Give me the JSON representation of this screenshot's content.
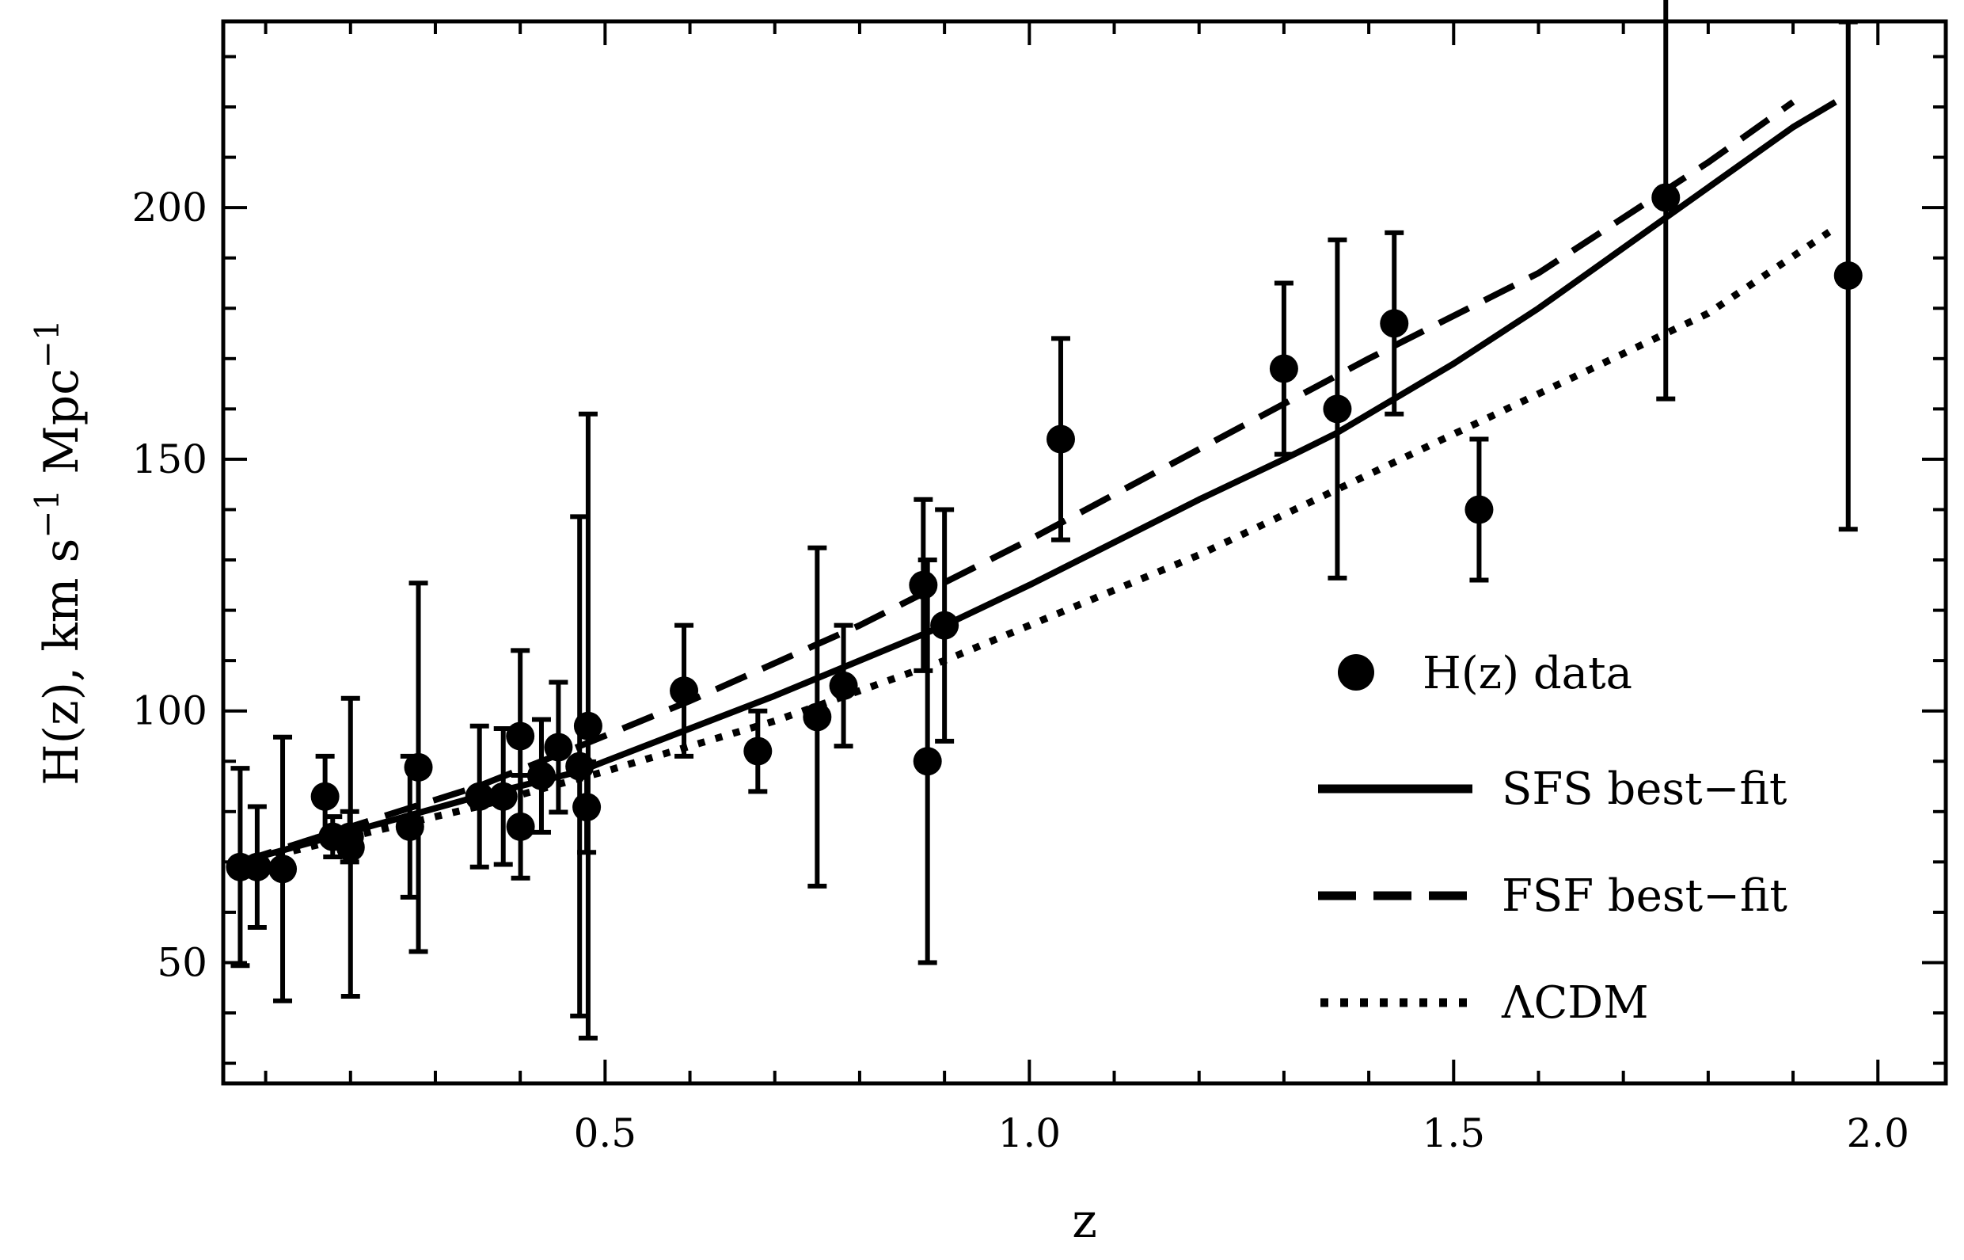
{
  "chart_data": {
    "type": "scatter",
    "title": "",
    "xlabel": "z",
    "ylabel_parts": {
      "main": "H(z), km s",
      "sup1": "−1",
      "mid": " Mpc",
      "sup2": "−1"
    },
    "xlim": [
      0.05,
      2.08
    ],
    "ylim": [
      26,
      237
    ],
    "x_ticks": [
      0.5,
      1.0,
      1.5,
      2.0
    ],
    "x_tick_labels": [
      "0.5",
      "1.0",
      "1.5",
      "2.0"
    ],
    "y_ticks": [
      50,
      100,
      150,
      200
    ],
    "y_tick_labels": [
      "50",
      "100",
      "150",
      "200"
    ],
    "grid": false,
    "legend_position": "bottom-right",
    "legend": [
      {
        "label": "H(z) data",
        "style": "marker"
      },
      {
        "label": "SFS best−fit",
        "style": "solid"
      },
      {
        "label": "FSF best−fit",
        "style": "dashed"
      },
      {
        "label": "ΛCDM",
        "style": "dotted"
      }
    ],
    "points": [
      {
        "x": 0.07,
        "y": 69,
        "err": 19.6
      },
      {
        "x": 0.09,
        "y": 69,
        "err": 12
      },
      {
        "x": 0.12,
        "y": 68.6,
        "err": 26.2
      },
      {
        "x": 0.17,
        "y": 83,
        "err": 8
      },
      {
        "x": 0.179,
        "y": 75,
        "err": 4
      },
      {
        "x": 0.199,
        "y": 75,
        "err": 5
      },
      {
        "x": 0.2,
        "y": 72.9,
        "err": 29.6
      },
      {
        "x": 0.27,
        "y": 77,
        "err": 14
      },
      {
        "x": 0.28,
        "y": 88.8,
        "err": 36.6
      },
      {
        "x": 0.352,
        "y": 83,
        "err": 14
      },
      {
        "x": 0.38,
        "y": 83,
        "err": 13.5
      },
      {
        "x": 0.4,
        "y": 95,
        "err": 17
      },
      {
        "x": 0.4004,
        "y": 77,
        "err": 10.2
      },
      {
        "x": 0.425,
        "y": 87.1,
        "err": 11.2
      },
      {
        "x": 0.445,
        "y": 92.8,
        "err": 12.9
      },
      {
        "x": 0.47,
        "y": 89,
        "err": 49.6
      },
      {
        "x": 0.4783,
        "y": 80.9,
        "err": 9
      },
      {
        "x": 0.48,
        "y": 97,
        "err": 62
      },
      {
        "x": 0.593,
        "y": 104,
        "err": 13
      },
      {
        "x": 0.68,
        "y": 92,
        "err": 8
      },
      {
        "x": 0.75,
        "y": 98.8,
        "err": 33.6
      },
      {
        "x": 0.781,
        "y": 105,
        "err": 12
      },
      {
        "x": 0.875,
        "y": 125,
        "err": 17
      },
      {
        "x": 0.88,
        "y": 90,
        "err": 40
      },
      {
        "x": 0.9,
        "y": 117,
        "err": 23
      },
      {
        "x": 1.037,
        "y": 154,
        "err": 20
      },
      {
        "x": 1.3,
        "y": 168,
        "err": 17
      },
      {
        "x": 1.363,
        "y": 160,
        "err": 33.6
      },
      {
        "x": 1.43,
        "y": 177,
        "err": 18
      },
      {
        "x": 1.53,
        "y": 140,
        "err": 14
      },
      {
        "x": 1.75,
        "y": 202,
        "err": 40
      },
      {
        "x": 1.965,
        "y": 186.5,
        "err": 50.4
      }
    ],
    "series": [
      {
        "name": "SFS best−fit",
        "style": "solid",
        "x": [
          0.07,
          0.2,
          0.35,
          0.47,
          0.5,
          0.7,
          0.9,
          1.0,
          1.2,
          1.3,
          1.36,
          1.5,
          1.6,
          1.7,
          1.8,
          1.9,
          1.95
        ],
        "y": [
          70,
          76,
          83,
          88,
          90,
          103,
          117,
          125,
          142,
          150,
          155,
          169,
          180,
          192,
          204,
          216,
          221
        ]
      },
      {
        "name": "FSF best−fit",
        "style": "dashed",
        "x": [
          0.07,
          0.2,
          0.35,
          0.47,
          0.6,
          0.8,
          1.0,
          1.2,
          1.4,
          1.6,
          1.8,
          1.9
        ],
        "y": [
          70,
          77,
          85,
          93,
          102,
          117,
          134,
          152,
          170,
          187,
          209,
          221
        ]
      },
      {
        "name": "ΛCDM",
        "style": "dotted",
        "x": [
          0.07,
          0.2,
          0.35,
          0.5,
          0.7,
          0.9,
          1.0,
          1.2,
          1.4,
          1.6,
          1.8,
          1.95
        ],
        "y": [
          69.6,
          75,
          81,
          88,
          98,
          110,
          117,
          131,
          147,
          163,
          179,
          196
        ]
      }
    ]
  }
}
